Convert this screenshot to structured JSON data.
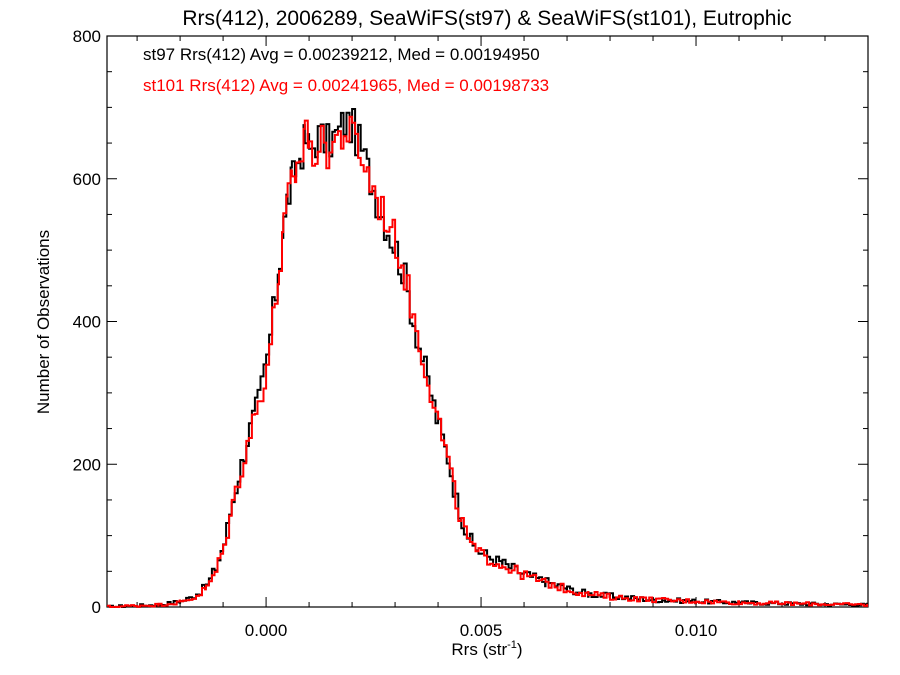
{
  "chart_data": {
    "type": "histogram-step",
    "title": "Rrs(412), 2006289, SeaWiFS(st97) & SeaWiFS(st101), Eutrophic",
    "xlabel": "Rrs (str",
    "xlabel_sup": "-1",
    "xlabel_close": ")",
    "ylabel": "Number of Observations",
    "xlim": [
      -0.0037,
      0.014
    ],
    "ylim": [
      0,
      800
    ],
    "x_ticks": [
      0.0,
      0.005,
      0.01
    ],
    "x_tick_labels": [
      "0.000",
      "0.005",
      "0.010"
    ],
    "y_ticks": [
      0,
      200,
      400,
      600,
      800
    ],
    "y_tick_labels": [
      "0",
      "200",
      "400",
      "600",
      "800"
    ],
    "grid": false,
    "annotations": [
      {
        "text": "st97 Rrs(412) Avg = 0.00239212, Med = 0.00194950",
        "color": "#000000"
      },
      {
        "text": "st101 Rrs(412) Avg = 0.00241965, Med = 0.00198733",
        "color": "#ff0000"
      }
    ],
    "series": [
      {
        "color": "#000000",
        "points": [
          [
            -0.0037,
            0
          ],
          [
            -0.003,
            2
          ],
          [
            -0.0025,
            3
          ],
          [
            -0.002,
            8
          ],
          [
            -0.0017,
            15
          ],
          [
            -0.0014,
            30
          ],
          [
            -0.0012,
            55
          ],
          [
            -0.001,
            90
          ],
          [
            -0.0008,
            150
          ],
          [
            -0.0006,
            200
          ],
          [
            -0.0004,
            250
          ],
          [
            -0.0002,
            290
          ],
          [
            0.0,
            350
          ],
          [
            0.0002,
            440
          ],
          [
            0.0003,
            490
          ],
          [
            0.0004,
            540
          ],
          [
            0.0005,
            580
          ],
          [
            0.0006,
            600
          ],
          [
            0.0007,
            620
          ],
          [
            0.0008,
            640
          ],
          [
            0.0009,
            655
          ],
          [
            0.001,
            640
          ],
          [
            0.0012,
            660
          ],
          [
            0.0014,
            650
          ],
          [
            0.0016,
            660
          ],
          [
            0.0018,
            680
          ],
          [
            0.002,
            670
          ],
          [
            0.0022,
            640
          ],
          [
            0.0024,
            600
          ],
          [
            0.0026,
            560
          ],
          [
            0.0028,
            530
          ],
          [
            0.003,
            500
          ],
          [
            0.0032,
            460
          ],
          [
            0.0034,
            400
          ],
          [
            0.0036,
            350
          ],
          [
            0.0038,
            300
          ],
          [
            0.004,
            250
          ],
          [
            0.0042,
            210
          ],
          [
            0.0044,
            150
          ],
          [
            0.0046,
            110
          ],
          [
            0.0048,
            85
          ],
          [
            0.005,
            75
          ],
          [
            0.0055,
            60
          ],
          [
            0.006,
            45
          ],
          [
            0.0065,
            35
          ],
          [
            0.007,
            25
          ],
          [
            0.0075,
            18
          ],
          [
            0.008,
            15
          ],
          [
            0.009,
            10
          ],
          [
            0.01,
            8
          ],
          [
            0.011,
            6
          ],
          [
            0.012,
            5
          ],
          [
            0.013,
            4
          ],
          [
            0.014,
            3
          ]
        ]
      },
      {
        "color": "#ff0000",
        "points": [
          [
            -0.0037,
            0
          ],
          [
            -0.003,
            2
          ],
          [
            -0.0025,
            3
          ],
          [
            -0.002,
            7
          ],
          [
            -0.0017,
            13
          ],
          [
            -0.0014,
            27
          ],
          [
            -0.0012,
            50
          ],
          [
            -0.001,
            85
          ],
          [
            -0.0008,
            145
          ],
          [
            -0.0006,
            195
          ],
          [
            -0.0004,
            245
          ],
          [
            -0.0002,
            285
          ],
          [
            0.0,
            340
          ],
          [
            0.0002,
            430
          ],
          [
            0.0003,
            480
          ],
          [
            0.0004,
            530
          ],
          [
            0.0005,
            575
          ],
          [
            0.0006,
            595
          ],
          [
            0.0007,
            615
          ],
          [
            0.0008,
            635
          ],
          [
            0.0009,
            685
          ],
          [
            0.001,
            630
          ],
          [
            0.0012,
            650
          ],
          [
            0.0014,
            640
          ],
          [
            0.0016,
            655
          ],
          [
            0.0018,
            665
          ],
          [
            0.002,
            660
          ],
          [
            0.0022,
            630
          ],
          [
            0.0024,
            595
          ],
          [
            0.0026,
            565
          ],
          [
            0.0028,
            540
          ],
          [
            0.003,
            510
          ],
          [
            0.0032,
            465
          ],
          [
            0.0034,
            405
          ],
          [
            0.0036,
            355
          ],
          [
            0.0038,
            305
          ],
          [
            0.004,
            255
          ],
          [
            0.0042,
            205
          ],
          [
            0.0044,
            145
          ],
          [
            0.0046,
            105
          ],
          [
            0.0048,
            80
          ],
          [
            0.005,
            72
          ],
          [
            0.0055,
            58
          ],
          [
            0.006,
            44
          ],
          [
            0.0065,
            34
          ],
          [
            0.007,
            24
          ],
          [
            0.0075,
            18
          ],
          [
            0.008,
            14
          ],
          [
            0.009,
            10
          ],
          [
            0.01,
            8
          ],
          [
            0.011,
            6
          ],
          [
            0.012,
            5
          ],
          [
            0.013,
            4
          ],
          [
            0.014,
            3
          ]
        ]
      }
    ]
  }
}
